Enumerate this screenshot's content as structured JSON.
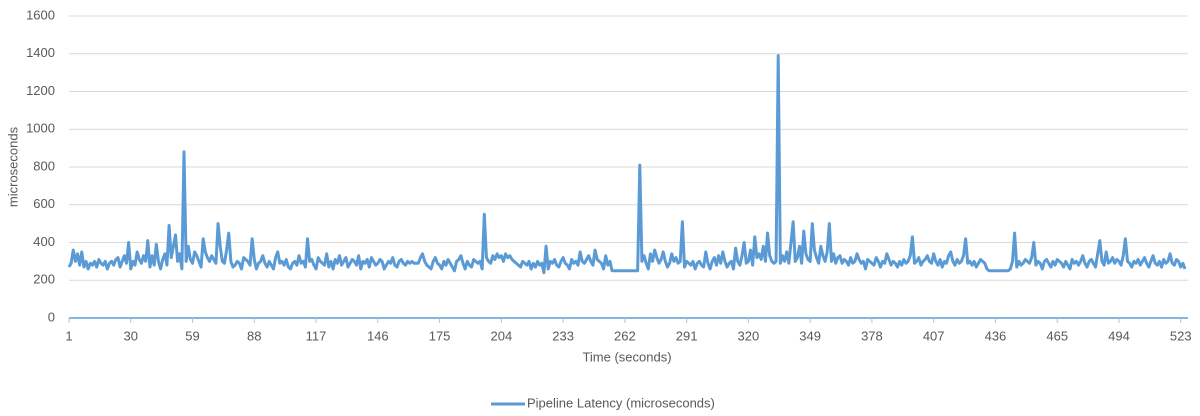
{
  "chart_data": {
    "type": "line",
    "x_label": "Time (seconds)",
    "y_label": "microseconds",
    "legend": "bottom",
    "grid": true,
    "xlim": [
      1,
      525
    ],
    "xticks": [
      1,
      30,
      59,
      88,
      117,
      146,
      175,
      204,
      233,
      262,
      291,
      320,
      349,
      378,
      407,
      436,
      465,
      494,
      523
    ],
    "ylim": [
      0,
      1600
    ],
    "yticks": [
      0,
      200,
      400,
      600,
      800,
      1000,
      1200,
      1400,
      1600
    ],
    "x": [
      1,
      2,
      3,
      4,
      5,
      6,
      7,
      8,
      9,
      10,
      11,
      12,
      13,
      14,
      15,
      16,
      17,
      18,
      19,
      20,
      21,
      22,
      23,
      24,
      25,
      26,
      27,
      28,
      29,
      30,
      31,
      32,
      33,
      34,
      35,
      36,
      37,
      38,
      39,
      40,
      41,
      42,
      43,
      44,
      45,
      46,
      47,
      48,
      49,
      50,
      51,
      52,
      53,
      54,
      55,
      56,
      57,
      58,
      59,
      60,
      61,
      62,
      63,
      64,
      65,
      66,
      67,
      68,
      69,
      70,
      71,
      72,
      73,
      74,
      75,
      76,
      77,
      78,
      79,
      80,
      81,
      82,
      83,
      84,
      85,
      86,
      87,
      88,
      89,
      90,
      91,
      92,
      93,
      94,
      95,
      96,
      97,
      98,
      99,
      100,
      101,
      102,
      103,
      104,
      105,
      106,
      107,
      108,
      109,
      110,
      111,
      112,
      113,
      114,
      115,
      116,
      117,
      118,
      119,
      120,
      121,
      122,
      123,
      124,
      125,
      126,
      127,
      128,
      129,
      130,
      131,
      132,
      133,
      134,
      135,
      136,
      137,
      138,
      139,
      140,
      141,
      142,
      143,
      144,
      145,
      146,
      147,
      148,
      149,
      150,
      151,
      152,
      153,
      154,
      155,
      156,
      157,
      158,
      159,
      160,
      161,
      162,
      163,
      164,
      165,
      166,
      167,
      168,
      169,
      170,
      171,
      172,
      173,
      174,
      175,
      176,
      177,
      178,
      179,
      180,
      181,
      182,
      183,
      184,
      185,
      186,
      187,
      188,
      189,
      190,
      191,
      192,
      193,
      194,
      195,
      196,
      197,
      198,
      199,
      200,
      201,
      202,
      203,
      204,
      205,
      206,
      207,
      208,
      209,
      210,
      211,
      212,
      213,
      214,
      215,
      216,
      217,
      218,
      219,
      220,
      221,
      222,
      223,
      224,
      225,
      226,
      227,
      228,
      229,
      230,
      231,
      232,
      233,
      234,
      235,
      236,
      237,
      238,
      239,
      240,
      241,
      242,
      243,
      244,
      245,
      246,
      247,
      248,
      249,
      250,
      251,
      252,
      253,
      254,
      255,
      256,
      257,
      258,
      259,
      260,
      261,
      262,
      263,
      264,
      265,
      266,
      267,
      268,
      269,
      270,
      271,
      272,
      273,
      274,
      275,
      276,
      277,
      278,
      279,
      280,
      281,
      282,
      283,
      284,
      285,
      286,
      287,
      288,
      289,
      290,
      291,
      292,
      293,
      294,
      295,
      296,
      297,
      298,
      299,
      300,
      301,
      302,
      303,
      304,
      305,
      306,
      307,
      308,
      309,
      310,
      311,
      312,
      313,
      314,
      315,
      316,
      317,
      318,
      319,
      320,
      321,
      322,
      323,
      324,
      325,
      326,
      327,
      328,
      329,
      330,
      331,
      332,
      333,
      334,
      335,
      336,
      337,
      338,
      339,
      340,
      341,
      342,
      343,
      344,
      345,
      346,
      347,
      348,
      349,
      350,
      351,
      352,
      353,
      354,
      355,
      356,
      357,
      358,
      359,
      360,
      361,
      362,
      363,
      364,
      365,
      366,
      367,
      368,
      369,
      370,
      371,
      372,
      373,
      374,
      375,
      376,
      377,
      378,
      379,
      380,
      381,
      382,
      383,
      384,
      385,
      386,
      387,
      388,
      389,
      390,
      391,
      392,
      393,
      394,
      395,
      396,
      397,
      398,
      399,
      400,
      401,
      402,
      403,
      404,
      405,
      406,
      407,
      408,
      409,
      410,
      411,
      412,
      413,
      414,
      415,
      416,
      417,
      418,
      419,
      420,
      421,
      422,
      423,
      424,
      425,
      426,
      427,
      428,
      429,
      430,
      431,
      432,
      433,
      434,
      435,
      436,
      437,
      438,
      439,
      440,
      441,
      442,
      443,
      444,
      445,
      446,
      447,
      448,
      449,
      450,
      451,
      452,
      453,
      454,
      455,
      456,
      457,
      458,
      459,
      460,
      461,
      462,
      463,
      464,
      465,
      466,
      467,
      468,
      469,
      470,
      471,
      472,
      473,
      474,
      475,
      476,
      477,
      478,
      479,
      480,
      481,
      482,
      483,
      484,
      485,
      486,
      487,
      488,
      489,
      490,
      491,
      492,
      493,
      494,
      495,
      496,
      497,
      498,
      499,
      500,
      501,
      502,
      503,
      504,
      505,
      506,
      507,
      508,
      509,
      510,
      511,
      512,
      513,
      514,
      515,
      516,
      517,
      518,
      519,
      520,
      521,
      522,
      523,
      524,
      525
    ],
    "series": [
      {
        "name": "Pipeline Latency (microseconds)",
        "color": "#5b9bd5",
        "values": [
          270,
          290,
          360,
          300,
          340,
          280,
          350,
          270,
          300,
          260,
          290,
          280,
          300,
          270,
          310,
          290,
          280,
          300,
          260,
          290,
          300,
          280,
          310,
          320,
          270,
          300,
          330,
          290,
          400,
          260,
          300,
          280,
          350,
          310,
          290,
          330,
          300,
          410,
          270,
          330,
          280,
          390,
          300,
          260,
          310,
          340,
          280,
          490,
          320,
          380,
          440,
          300,
          340,
          260,
          880,
          300,
          380,
          310,
          290,
          350,
          330,
          300,
          270,
          420,
          350,
          320,
          300,
          330,
          310,
          290,
          500,
          380,
          300,
          290,
          360,
          450,
          300,
          270,
          280,
          300,
          290,
          260,
          320,
          310,
          300,
          280,
          420,
          310,
          260,
          290,
          300,
          330,
          290,
          270,
          300,
          280,
          260,
          320,
          350,
          290,
          300,
          280,
          310,
          270,
          260,
          290,
          300,
          280,
          330,
          290,
          300,
          270,
          420,
          300,
          310,
          280,
          260,
          320,
          300,
          290,
          280,
          340,
          270,
          300,
          260,
          310,
          290,
          330,
          280,
          300,
          320,
          270,
          290,
          310,
          300,
          280,
          330,
          260,
          300,
          290,
          310,
          270,
          320,
          300,
          280,
          290,
          310,
          300,
          260,
          280,
          300,
          290,
          320,
          280,
          270,
          300,
          310,
          290,
          280,
          300,
          290,
          300,
          290,
          290,
          290,
          320,
          340,
          300,
          280,
          270,
          260,
          300,
          320,
          290,
          280,
          260,
          300,
          280,
          310,
          290,
          270,
          250,
          300,
          310,
          330,
          290,
          260,
          300,
          280,
          270,
          310,
          300,
          290,
          300,
          260,
          550,
          320,
          300,
          290,
          330,
          310,
          340,
          320,
          330,
          300,
          340,
          320,
          330,
          310,
          300,
          290,
          280,
          270,
          300,
          290,
          280,
          300,
          260,
          290,
          270,
          300,
          280,
          290,
          240,
          380,
          260,
          300,
          290,
          310,
          280,
          270,
          300,
          320,
          290,
          280,
          260,
          310,
          290,
          300,
          280,
          350,
          300,
          290,
          310,
          330,
          300,
          280,
          360,
          310,
          300,
          290,
          260,
          330,
          280,
          300,
          250,
          250,
          250,
          250,
          250,
          250,
          250,
          250,
          250,
          250,
          250,
          250,
          250,
          810,
          300,
          330,
          290,
          260,
          340,
          300,
          360,
          320,
          290,
          310,
          350,
          300,
          270,
          290,
          340,
          300,
          320,
          290,
          300,
          510,
          270,
          300,
          290,
          280,
          300,
          260,
          290,
          300,
          280,
          270,
          350,
          290,
          260,
          300,
          320,
          280,
          330,
          290,
          350,
          300,
          270,
          290,
          300,
          260,
          370,
          300,
          280,
          330,
          400,
          290,
          300,
          360,
          280,
          430,
          320,
          340,
          310,
          380,
          300,
          450,
          330,
          300,
          290,
          300,
          1390,
          290,
          330,
          300,
          350,
          290,
          400,
          510,
          300,
          320,
          380,
          290,
          460,
          340,
          310,
          300,
          500,
          360,
          320,
          290,
          380,
          330,
          300,
          350,
          500,
          300,
          340,
          290,
          320,
          330,
          290,
          310,
          300,
          280,
          320,
          290,
          300,
          340,
          310,
          290,
          300,
          260,
          310,
          300,
          290,
          280,
          320,
          300,
          270,
          300,
          290,
          340,
          310,
          280,
          300,
          290,
          270,
          300,
          280,
          310,
          290,
          300,
          330,
          430,
          290,
          300,
          320,
          280,
          300,
          310,
          330,
          300,
          290,
          340,
          300,
          280,
          310,
          270,
          300,
          290,
          330,
          350,
          300,
          280,
          310,
          290,
          300,
          330,
          420,
          290,
          300,
          280,
          300,
          270,
          290,
          310,
          300,
          290,
          260,
          250,
          250,
          250,
          250,
          250,
          250,
          250,
          250,
          250,
          250,
          260,
          300,
          450,
          270,
          300,
          280,
          290,
          310,
          300,
          290,
          320,
          400,
          280,
          300,
          290,
          260,
          300,
          310,
          290,
          270,
          300,
          280,
          310,
          300,
          290,
          270,
          300,
          280,
          260,
          310,
          290,
          300,
          280,
          300,
          330,
          290,
          270,
          300,
          310,
          290,
          270,
          340,
          410,
          300,
          280,
          350,
          290,
          300,
          320,
          290,
          310,
          300,
          280,
          330,
          420,
          300,
          290,
          270,
          300,
          290,
          310,
          280,
          300,
          320,
          290,
          270,
          300,
          330,
          290,
          280,
          300,
          270,
          310,
          290,
          300,
          340,
          290,
          280,
          310,
          300,
          270,
          290,
          260
        ]
      }
    ]
  }
}
